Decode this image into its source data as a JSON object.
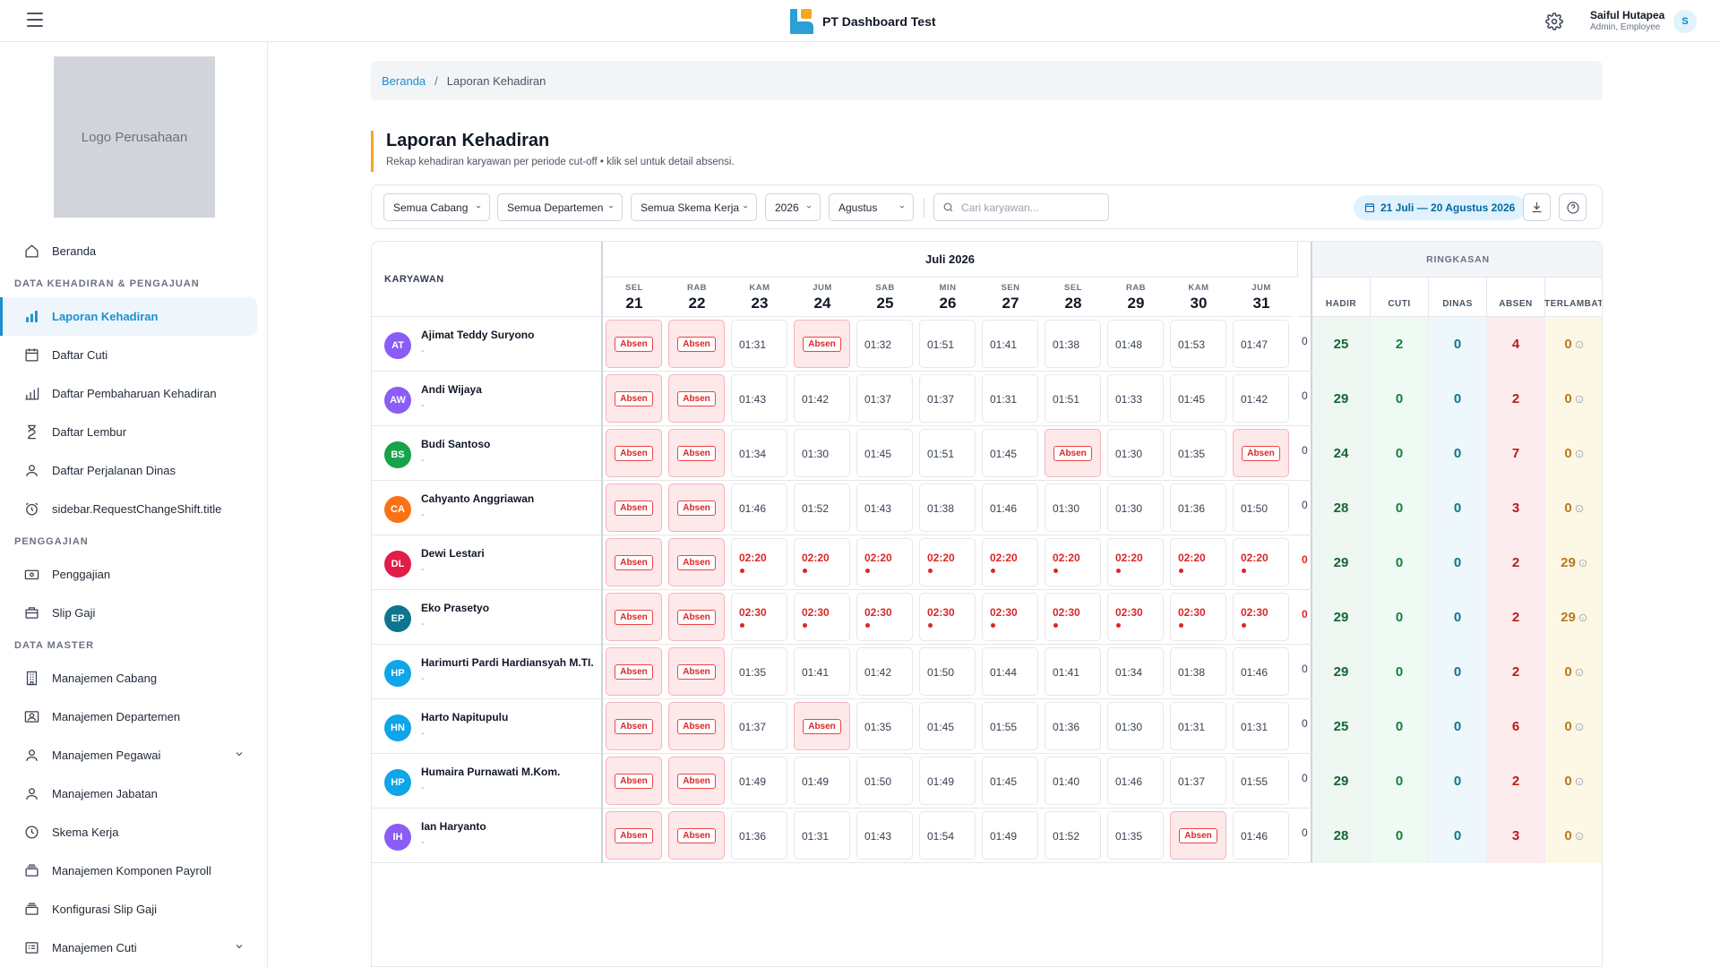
{
  "header": {
    "brand": "PT Dashboard Test",
    "user_name": "Saiful Hutapea",
    "user_role": "Admin, Employee",
    "avatar_initial": "S"
  },
  "sidebar": {
    "logo_text": "Logo Perusahaan",
    "home": "Beranda",
    "section_attendance": "DATA KEHADIRAN & PENGAJUAN",
    "attendance_items": [
      "Laporan Kehadiran",
      "Daftar Cuti",
      "Daftar Pembaharuan Kehadiran",
      "Daftar Lembur",
      "Daftar Perjalanan Dinas",
      "sidebar.RequestChangeShift.title"
    ],
    "section_payroll": "PENGGAJIAN",
    "payroll_items": [
      "Penggajian",
      "Slip Gaji"
    ],
    "section_master": "DATA MASTER",
    "master_items": [
      "Manajemen Cabang",
      "Manajemen Departemen",
      "Manajemen Pegawai",
      "Manajemen Jabatan",
      "Skema Kerja",
      "Manajemen Komponen Payroll",
      "Konfigurasi Slip Gaji",
      "Manajemen Cuti"
    ]
  },
  "breadcrumb": {
    "home": "Beranda",
    "sep": "/",
    "current": "Laporan Kehadiran"
  },
  "page": {
    "title": "Laporan Kehadiran",
    "subtitle": "Rekap kehadiran karyawan per periode cut-off • klik sel untuk detail absensi."
  },
  "filters": {
    "branch": "Semua Cabang",
    "department": "Semua Departemen",
    "schedule": "Semua Skema Kerja",
    "year": "2026",
    "month": "Agustus",
    "search_placeholder": "Cari karyawan...",
    "period": "21 Juli — 20 Agustus 2026"
  },
  "table": {
    "employee_header": "KARYAWAN",
    "month_label": "Juli 2026",
    "summary_header": "RINGKASAN",
    "summary_cols": [
      "HADIR",
      "CUTI",
      "DINAS",
      "ABSEN",
      "TERLAMBAT"
    ],
    "absent_label": "Absen",
    "days": [
      {
        "dow": "SEL",
        "num": "21"
      },
      {
        "dow": "RAB",
        "num": "22"
      },
      {
        "dow": "KAM",
        "num": "23"
      },
      {
        "dow": "JUM",
        "num": "24"
      },
      {
        "dow": "SAB",
        "num": "25"
      },
      {
        "dow": "MIN",
        "num": "26"
      },
      {
        "dow": "SEN",
        "num": "27"
      },
      {
        "dow": "SEL",
        "num": "28"
      },
      {
        "dow": "RAB",
        "num": "29"
      },
      {
        "dow": "KAM",
        "num": "30"
      },
      {
        "dow": "JUM",
        "num": "31"
      }
    ],
    "rows": [
      {
        "initials": "AT",
        "name": "Ajimat Teddy Suryono",
        "sub": "-",
        "color": "#8b5cf6",
        "late": false,
        "cells": [
          "A",
          "A",
          "01:31",
          "A",
          "01:32",
          "01:51",
          "01:41",
          "01:38",
          "01:48",
          "01:53",
          "01:47"
        ],
        "summary": [
          "25",
          "2",
          "0",
          "4",
          "0"
        ]
      },
      {
        "initials": "AW",
        "name": "Andi Wijaya",
        "sub": "-",
        "color": "#8b5cf6",
        "late": false,
        "cells": [
          "A",
          "A",
          "01:43",
          "01:42",
          "01:37",
          "01:37",
          "01:31",
          "01:51",
          "01:33",
          "01:45",
          "01:42"
        ],
        "summary": [
          "29",
          "0",
          "0",
          "2",
          "0"
        ]
      },
      {
        "initials": "BS",
        "name": "Budi Santoso",
        "sub": "-",
        "color": "#16a34a",
        "late": false,
        "cells": [
          "A",
          "A",
          "01:34",
          "01:30",
          "01:45",
          "01:51",
          "01:45",
          "A",
          "01:30",
          "01:35",
          "A"
        ],
        "summary": [
          "24",
          "0",
          "0",
          "7",
          "0"
        ]
      },
      {
        "initials": "CA",
        "name": "Cahyanto Anggriawan",
        "sub": "-",
        "color": "#f97316",
        "late": false,
        "cells": [
          "A",
          "A",
          "01:46",
          "01:52",
          "01:43",
          "01:38",
          "01:46",
          "01:30",
          "01:30",
          "01:36",
          "01:50"
        ],
        "summary": [
          "28",
          "0",
          "0",
          "3",
          "0"
        ]
      },
      {
        "initials": "DL",
        "name": "Dewi Lestari",
        "sub": "-",
        "color": "#e11d48",
        "late": true,
        "cells": [
          "A",
          "A",
          "02:20",
          "02:20",
          "02:20",
          "02:20",
          "02:20",
          "02:20",
          "02:20",
          "02:20",
          "02:20"
        ],
        "summary": [
          "29",
          "0",
          "0",
          "2",
          "29"
        ]
      },
      {
        "initials": "EP",
        "name": "Eko Prasetyo",
        "sub": "-",
        "color": "#0e7490",
        "late": true,
        "cells": [
          "A",
          "A",
          "02:30",
          "02:30",
          "02:30",
          "02:30",
          "02:30",
          "02:30",
          "02:30",
          "02:30",
          "02:30"
        ],
        "summary": [
          "29",
          "0",
          "0",
          "2",
          "29"
        ]
      },
      {
        "initials": "HP",
        "name": "Harimurti Pardi Hardiansyah M.TI.",
        "sub": "-",
        "color": "#0ea5e9",
        "late": false,
        "cells": [
          "A",
          "A",
          "01:35",
          "01:41",
          "01:42",
          "01:50",
          "01:44",
          "01:41",
          "01:34",
          "01:38",
          "01:46"
        ],
        "summary": [
          "29",
          "0",
          "0",
          "2",
          "0"
        ]
      },
      {
        "initials": "HN",
        "name": "Harto Napitupulu",
        "sub": "-",
        "color": "#0ea5e9",
        "late": false,
        "cells": [
          "A",
          "A",
          "01:37",
          "A",
          "01:35",
          "01:45",
          "01:55",
          "01:36",
          "01:30",
          "01:31",
          "01:31"
        ],
        "summary": [
          "25",
          "0",
          "0",
          "6",
          "0"
        ]
      },
      {
        "initials": "HP",
        "name": "Humaira Purnawati M.Kom.",
        "sub": "-",
        "color": "#0ea5e9",
        "late": false,
        "cells": [
          "A",
          "A",
          "01:49",
          "01:49",
          "01:50",
          "01:49",
          "01:45",
          "01:40",
          "01:46",
          "01:37",
          "01:55"
        ],
        "summary": [
          "29",
          "0",
          "0",
          "2",
          "0"
        ]
      },
      {
        "initials": "IH",
        "name": "Ian Haryanto",
        "sub": "-",
        "color": "#8b5cf6",
        "late": false,
        "cells": [
          "A",
          "A",
          "01:36",
          "01:31",
          "01:43",
          "01:54",
          "01:49",
          "01:52",
          "01:35",
          "A",
          "01:46"
        ],
        "summary": [
          "28",
          "0",
          "0",
          "3",
          "0"
        ]
      }
    ]
  },
  "colors": {
    "accent": "#1b8fd0",
    "title_bar": "#f5a623",
    "absent": "#dc2626"
  },
  "icons": [
    "menu-icon",
    "gear-icon",
    "home-icon",
    "chart-icon",
    "calendar-icon",
    "bars-icon",
    "hourglass-icon",
    "user-icon",
    "alarm-icon",
    "wallet-icon",
    "receipt-icon",
    "building-icon",
    "id-card-icon",
    "clock-icon",
    "layers-icon",
    "list-icon",
    "search-icon",
    "download-icon",
    "help-icon",
    "info-icon"
  ]
}
